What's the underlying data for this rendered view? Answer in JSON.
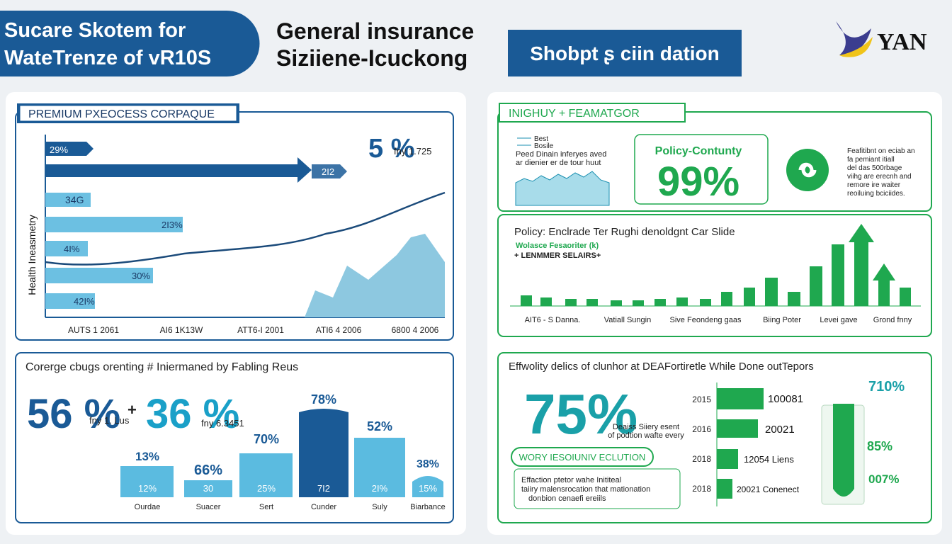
{
  "header": {
    "badge": [
      "Sucare Skotem for",
      "WateTrenze of vR10S"
    ],
    "title": [
      "General insurance",
      "Siziiene-Icuckong"
    ],
    "button": "Shobpt ʂ ciin dation",
    "logo": "YAN"
  },
  "premium_panel": {
    "title": "PREMIUM PXEOCESS CORPAQUE",
    "axis_label": "Health Ineasmetry",
    "big": "5 %",
    "big_note": "fny 1.725",
    "arrow_label": "2I2",
    "bar_labels": [
      "29%",
      "34G",
      "2I3%",
      "4I%",
      "30%",
      "42I%"
    ],
    "x_labels": [
      "AUTS 1 2061",
      "AI6 1K13W",
      "ATT6-I 2001",
      "ATI6 4 2006",
      "6800 4 2006"
    ]
  },
  "coverage_panel": {
    "title": "Corerge cbugs orenting # Iniermaned by Fabling Reus",
    "stat_a": "56 %",
    "stat_a_note": "fny 1. Lus",
    "plus": "+",
    "stat_b": "36 %",
    "stat_b_note": "fny 6.3451",
    "columns": [
      {
        "top": "13%",
        "inner": "12%",
        "category": "Ourdae"
      },
      {
        "top": "66%",
        "inner": "30",
        "category": "Suacer"
      },
      {
        "top": "70%",
        "inner": "25%",
        "category": "Sert"
      },
      {
        "top": "78%",
        "inner": "7I2",
        "category": "Cunder"
      },
      {
        "top": "52%",
        "inner": "2I%",
        "category": "Suly"
      },
      {
        "top": "38%",
        "inner": "15%",
        "category": "Biarbance"
      }
    ]
  },
  "insight_panel": {
    "title": "INIGHUY + FEAMATGOR",
    "legend": [
      "Best",
      "Bosile"
    ],
    "note": [
      "Peed Dinain inferyes aved",
      "ar dienier er de tour huut"
    ],
    "card_title": "Policy-Contunty",
    "card_value": "99%",
    "side_text": [
      "Feafitibnt on eciab an",
      "fa pemiant itiall",
      "del das 500rbage",
      "viihg are erecnh and",
      "remore ire waiter",
      "reoiluing bciciides."
    ]
  },
  "trend_panel": {
    "title": "Policy: Enclrade Ter Rughi denoldgnt Car Slide",
    "subtitle": "Wolasce Fesaoriter (k)",
    "legend": "+ LENMMER SELAIRS+",
    "x_labels": [
      "AIT6 - S Danna.",
      "Vatiall Sungin",
      "Sive Feondeng gaas",
      "Biing Poter",
      "Levei gave",
      "Grond fnny"
    ]
  },
  "efficiency_panel": {
    "title": "Effwolity delics of clunhor at DEAFortiretle While Done outTepors",
    "big": "75%",
    "big_note": [
      "Deaiss Siiery esent",
      "of podtion wafte every"
    ],
    "pill": "WORY IESOIUNIV ECLUTION",
    "box": [
      "Effaction ptetor wahe Inititeal",
      "taiiry malensrocation that mationation",
      "donbion cenaefi ereiils"
    ],
    "rows": [
      {
        "year": "2015",
        "value": "100081"
      },
      {
        "year": "2016",
        "value": "20021"
      },
      {
        "year": "2018",
        "value": "12054 Liens"
      },
      {
        "year": "2018",
        "value": "20021 Conenect"
      }
    ],
    "tube": [
      "710%",
      "85%",
      "007%"
    ]
  }
}
